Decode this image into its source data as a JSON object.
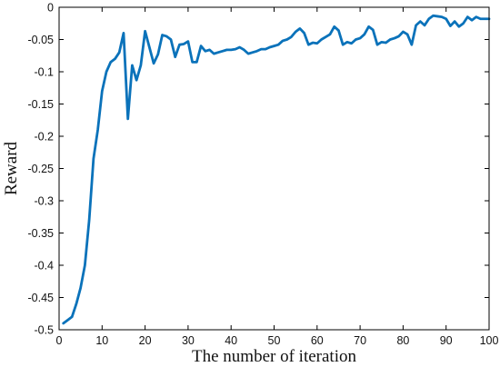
{
  "chart_data": {
    "type": "line",
    "title": "",
    "xlabel": "The number of iteration",
    "ylabel": "Reward",
    "xlim": [
      0,
      100
    ],
    "ylim": [
      -0.5,
      0
    ],
    "grid": false,
    "legend": "none",
    "x_ticks": [
      0,
      10,
      20,
      30,
      40,
      50,
      60,
      70,
      80,
      90,
      100
    ],
    "x_tick_labels": [
      "0",
      "10",
      "20",
      "30",
      "40",
      "50",
      "60",
      "70",
      "80",
      "90",
      "100"
    ],
    "y_ticks": [
      -0.5,
      -0.45,
      -0.4,
      -0.35,
      -0.3,
      -0.25,
      -0.2,
      -0.15,
      -0.1,
      -0.05,
      0
    ],
    "y_tick_labels": [
      "-0.5",
      "-0.45",
      "-0.4",
      "-0.35",
      "-0.3",
      "-0.25",
      "-0.2",
      "-0.15",
      "-0.1",
      "-0.05",
      "0"
    ],
    "colors": {
      "line": "#0a72ba"
    },
    "series": [
      {
        "x": [
          1,
          2,
          3,
          4,
          5,
          6,
          7,
          8,
          9,
          10,
          11,
          12,
          13,
          14,
          15,
          16,
          17,
          18,
          19,
          20,
          21,
          22,
          23,
          24,
          25,
          26,
          27,
          28,
          29,
          30,
          31,
          32,
          33,
          34,
          35,
          36,
          37,
          38,
          39,
          40,
          41,
          42,
          43,
          44,
          45,
          46,
          47,
          48,
          49,
          50,
          51,
          52,
          53,
          54,
          55,
          56,
          57,
          58,
          59,
          60,
          61,
          62,
          63,
          64,
          65,
          66,
          67,
          68,
          69,
          70,
          71,
          72,
          73,
          74,
          75,
          76,
          77,
          78,
          79,
          80,
          81,
          82,
          83,
          84,
          85,
          86,
          87,
          88,
          89,
          90,
          91,
          92,
          93,
          94,
          95,
          96,
          97,
          98,
          99,
          100
        ],
        "values": [
          -0.49,
          -0.485,
          -0.48,
          -0.46,
          -0.435,
          -0.4,
          -0.33,
          -0.235,
          -0.19,
          -0.13,
          -0.1,
          -0.085,
          -0.08,
          -0.07,
          -0.04,
          -0.173,
          -0.09,
          -0.113,
          -0.09,
          -0.037,
          -0.062,
          -0.087,
          -0.073,
          -0.043,
          -0.045,
          -0.05,
          -0.077,
          -0.058,
          -0.057,
          -0.053,
          -0.085,
          -0.085,
          -0.06,
          -0.068,
          -0.066,
          -0.072,
          -0.07,
          -0.068,
          -0.066,
          -0.066,
          -0.065,
          -0.062,
          -0.066,
          -0.072,
          -0.07,
          -0.068,
          -0.065,
          -0.065,
          -0.062,
          -0.06,
          -0.058,
          -0.052,
          -0.05,
          -0.046,
          -0.038,
          -0.033,
          -0.04,
          -0.058,
          -0.055,
          -0.056,
          -0.05,
          -0.046,
          -0.042,
          -0.03,
          -0.036,
          -0.058,
          -0.054,
          -0.056,
          -0.05,
          -0.048,
          -0.042,
          -0.03,
          -0.035,
          -0.058,
          -0.054,
          -0.055,
          -0.05,
          -0.048,
          -0.045,
          -0.038,
          -0.042,
          -0.058,
          -0.028,
          -0.022,
          -0.028,
          -0.018,
          -0.013,
          -0.014,
          -0.015,
          -0.018,
          -0.029,
          -0.022,
          -0.03,
          -0.025,
          -0.015,
          -0.02,
          -0.015,
          -0.018,
          -0.018,
          -0.018
        ]
      }
    ]
  }
}
